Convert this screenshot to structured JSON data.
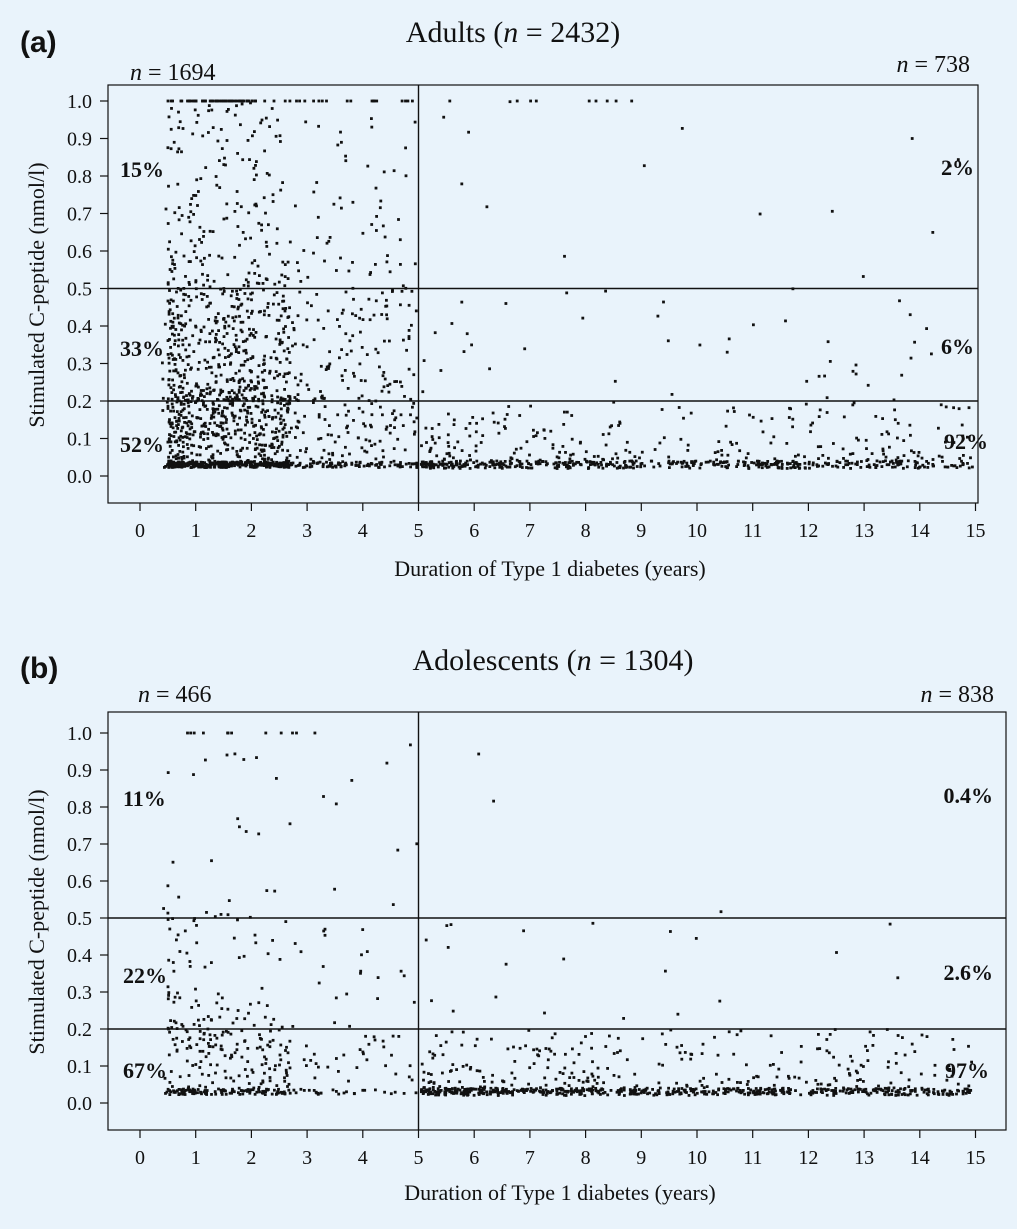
{
  "chart_data": [
    {
      "type": "scatter",
      "panel_label": "(a)",
      "title": "Adults (n = 2432)",
      "title_prefix": "Adults (",
      "title_n_value": " = 2432)",
      "xlabel": "Duration of Type 1 diabetes (years)",
      "ylabel": "Stimulated C-peptide (nmol/l)",
      "xlim": [
        -0.6,
        15.3
      ],
      "ylim": [
        -0.06,
        1.06
      ],
      "x_ticks": [
        0,
        1,
        2,
        3,
        4,
        5,
        6,
        7,
        8,
        9,
        10,
        11,
        12,
        13,
        14,
        15
      ],
      "y_ticks": [
        0.0,
        0.1,
        0.2,
        0.3,
        0.4,
        0.5,
        0.6,
        0.7,
        0.8,
        0.9,
        1.0
      ],
      "y_tick_labels": [
        "0.0",
        "0.1",
        "0.2",
        "0.3",
        "0.4",
        "0.5",
        "0.6",
        "0.7",
        "0.8",
        "0.9",
        "1.0"
      ],
      "grid": false,
      "reference_lines": {
        "vertical_x": 5,
        "horizontal_y": [
          0.2,
          0.5
        ]
      },
      "group_counts": {
        "left": "= 1694",
        "right": "= 738"
      },
      "percent_labels": {
        "left": [
          "15%",
          "33%",
          "52%"
        ],
        "right": [
          "2%",
          "6%",
          "92%"
        ]
      },
      "density": {
        "left_bands": [
          {
            "ymin": 0.5,
            "ymax": 1.0,
            "count": 250
          },
          {
            "ymin": 0.2,
            "ymax": 0.5,
            "count": 560
          },
          {
            "ymin": 0.0,
            "ymax": 0.2,
            "count": 880
          }
        ],
        "right_bands": [
          {
            "ymin": 0.5,
            "ymax": 1.0,
            "count": 15
          },
          {
            "ymin": 0.2,
            "ymax": 0.5,
            "count": 44
          },
          {
            "ymin": 0.0,
            "ymax": 0.2,
            "count": 680
          }
        ],
        "left_top_row_count": 80,
        "right_top_row_count": 9,
        "floor_y": 0.03
      }
    },
    {
      "type": "scatter",
      "panel_label": "(b)",
      "title": "Adolescents (n = 1304)",
      "title_prefix": "Adolescents (",
      "title_n_value": " = 1304)",
      "xlabel": "Duration of Type 1 diabetes (years)",
      "ylabel": "Stimulated C-peptide (nmol/l)",
      "xlim": [
        -0.6,
        15.3
      ],
      "ylim": [
        -0.06,
        1.06
      ],
      "x_ticks": [
        0,
        1,
        2,
        3,
        4,
        5,
        6,
        7,
        8,
        9,
        10,
        11,
        12,
        13,
        14,
        15
      ],
      "y_ticks": [
        0.0,
        0.1,
        0.2,
        0.3,
        0.4,
        0.5,
        0.6,
        0.7,
        0.8,
        0.9,
        1.0
      ],
      "y_tick_labels": [
        "0.0",
        "0.1",
        "0.2",
        "0.3",
        "0.4",
        "0.5",
        "0.6",
        "0.7",
        "0.8",
        "0.9",
        "1.0"
      ],
      "grid": false,
      "reference_lines": {
        "vertical_x": 5,
        "horizontal_y": [
          0.2,
          0.5
        ]
      },
      "group_counts": {
        "left": "= 466",
        "right": "= 838"
      },
      "percent_labels": {
        "left": [
          "11%",
          "22%",
          "67%"
        ],
        "right": [
          "0.4%",
          "2.6%",
          "97%"
        ]
      },
      "density": {
        "left_bands": [
          {
            "ymin": 0.5,
            "ymax": 1.0,
            "count": 36
          },
          {
            "ymin": 0.2,
            "ymax": 0.5,
            "count": 100
          },
          {
            "ymin": 0.0,
            "ymax": 0.2,
            "count": 310
          }
        ],
        "right_bands": [
          {
            "ymin": 0.5,
            "ymax": 1.0,
            "count": 3
          },
          {
            "ymin": 0.2,
            "ymax": 0.5,
            "count": 21
          },
          {
            "ymin": 0.0,
            "ymax": 0.2,
            "count": 800
          }
        ],
        "left_top_row_count": 12,
        "right_top_row_count": 0,
        "floor_y": 0.03
      }
    }
  ]
}
